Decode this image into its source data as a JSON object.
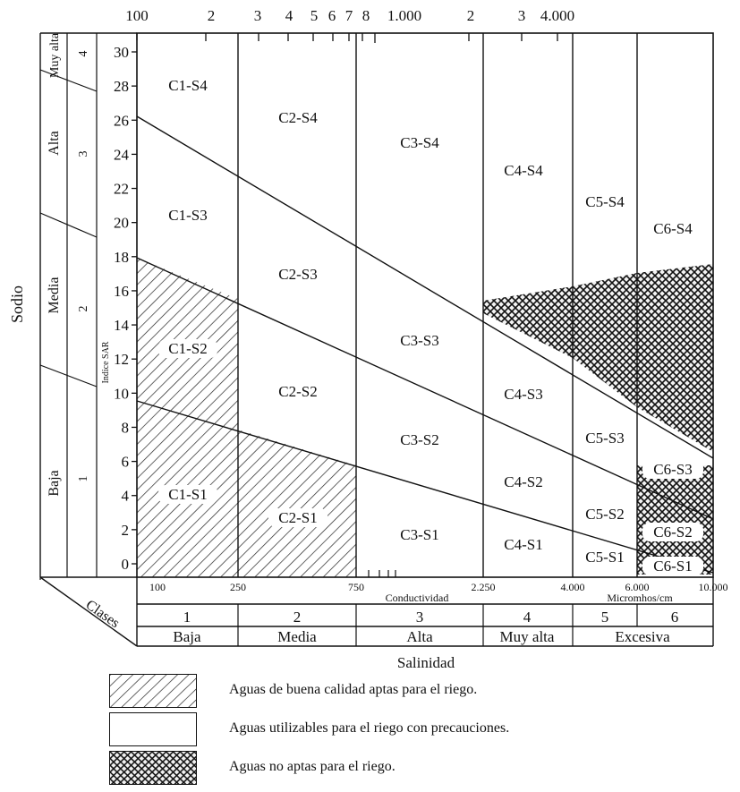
{
  "diagram": {
    "top_scale_ticks": [
      "100",
      "2",
      "3",
      "4",
      "5",
      "6",
      "7",
      "8",
      "1.000",
      "2",
      "3",
      "4.000"
    ],
    "bottom_scale_ticks": [
      "100",
      "250",
      "750",
      "2.250",
      "4.000",
      "6.000",
      "10.000"
    ],
    "conductivity_label": "Conductividad",
    "units_label": "Micromhos/cm",
    "y_axis_title": "Indice SAR",
    "y_ticks": [
      "0",
      "2",
      "4",
      "6",
      "8",
      "10",
      "12",
      "14",
      "16",
      "18",
      "20",
      "22",
      "24",
      "26",
      "28",
      "30"
    ],
    "sodium_title": "Sodio",
    "sodium_levels": [
      {
        "name": "Baja",
        "class": "1"
      },
      {
        "name": "Media",
        "class": "2"
      },
      {
        "name": "Alta",
        "class": "3"
      },
      {
        "name": "Muy alta",
        "class": "4"
      }
    ],
    "clases_label": "Clases",
    "salinity_classes": [
      "1",
      "2",
      "3",
      "4",
      "5",
      "6"
    ],
    "salinity_levels": [
      "Baja",
      "Media",
      "Alta",
      "Muy alta",
      "Excesiva"
    ],
    "salinity_title": "Salinidad",
    "region_labels": {
      "C1": [
        "C1-S1",
        "C1-S2",
        "C1-S3",
        "C1-S4"
      ],
      "C2": [
        "C2-S1",
        "C2-S2",
        "C2-S3",
        "C2-S4"
      ],
      "C3": [
        "C3-S1",
        "C3-S2",
        "C3-S3",
        "C3-S4"
      ],
      "C4": [
        "C4-S1",
        "C4-S2",
        "C4-S3",
        "C4-S4"
      ],
      "C5": [
        "C5-S1",
        "C5-S2",
        "C5-S3",
        "C5-S4"
      ],
      "C6": [
        "C6-S1",
        "C6-S2",
        "C6-S3",
        "C6-S4"
      ]
    },
    "hatch_stroke_color": "#222222"
  },
  "legend": [
    {
      "pattern": "diagonal-hatch",
      "text": "Aguas de buena calidad aptas para el riego."
    },
    {
      "pattern": "blank",
      "text": "Aguas utilizables para el riego con precauciones."
    },
    {
      "pattern": "crosshatch",
      "text": "Aguas no aptas para el riego."
    }
  ]
}
